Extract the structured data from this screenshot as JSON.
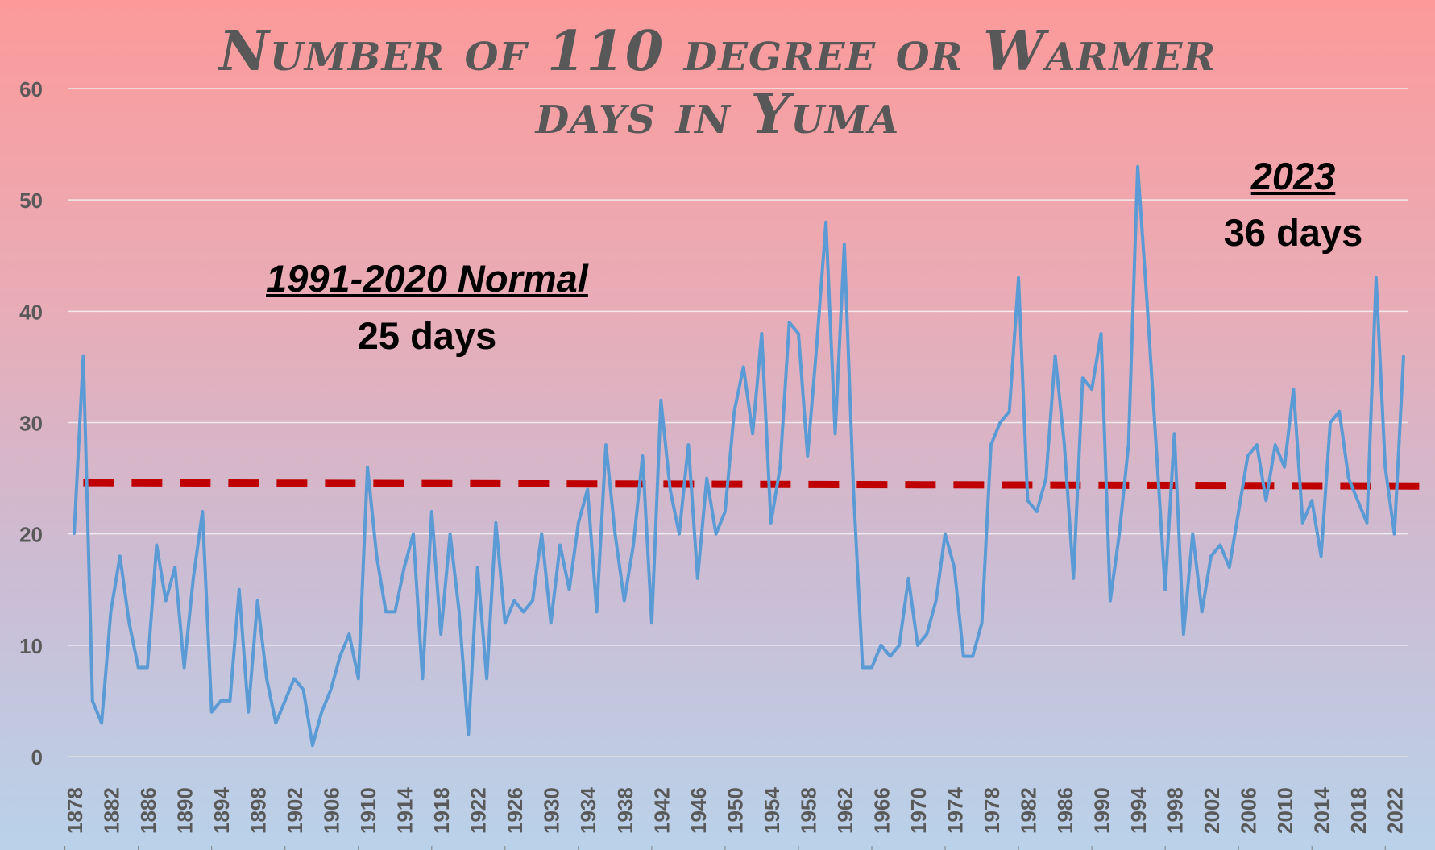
{
  "chart_data": {
    "type": "line",
    "title_line1": "Number of 110 degree or Warmer",
    "title_line2": "days in Yuma",
    "xlabel": "",
    "ylabel": "",
    "ylim": [
      0,
      60
    ],
    "yticks": [
      0,
      10,
      20,
      30,
      40,
      50,
      60
    ],
    "x_start": 1878,
    "x_end": 2023,
    "xtick_step": 4,
    "grid": true,
    "series": [
      {
        "color": "#5b9bd5",
        "values": [
          20,
          36,
          5,
          3,
          13,
          18,
          12,
          8,
          8,
          19,
          14,
          17,
          8,
          16,
          22,
          4,
          5,
          5,
          15,
          4,
          14,
          7,
          3,
          5,
          7,
          6,
          1,
          4,
          6,
          9,
          11,
          7,
          26,
          18,
          13,
          13,
          17,
          20,
          7,
          22,
          11,
          20,
          13,
          2,
          17,
          7,
          21,
          12,
          14,
          13,
          14,
          20,
          12,
          19,
          15,
          21,
          24,
          13,
          28,
          20,
          14,
          19,
          27,
          12,
          32,
          24,
          20,
          28,
          16,
          25,
          20,
          22,
          31,
          35,
          29,
          38,
          21,
          26,
          39,
          38,
          27,
          37,
          48,
          29,
          46,
          24,
          8,
          8,
          10,
          9,
          10,
          16,
          10,
          11,
          14,
          20,
          17,
          9,
          9,
          12,
          28,
          30,
          31,
          43,
          23,
          22,
          25,
          36,
          28,
          16,
          34,
          33,
          38,
          14,
          20,
          28,
          53,
          41,
          28,
          15,
          29,
          11,
          20,
          13,
          18,
          19,
          17,
          22,
          27,
          28,
          23,
          28,
          26,
          33,
          21,
          23,
          18,
          30,
          31,
          25,
          23,
          21,
          43,
          26,
          20,
          36
        ]
      },
      {
        "color": "#c00000",
        "dashed": true,
        "values_start": 24.6,
        "values_end": 24.3
      }
    ],
    "annotations": [
      {
        "heading": "1991-2020 Normal",
        "text": "25 days"
      },
      {
        "heading": "2023",
        "text": "36 days"
      }
    ]
  }
}
